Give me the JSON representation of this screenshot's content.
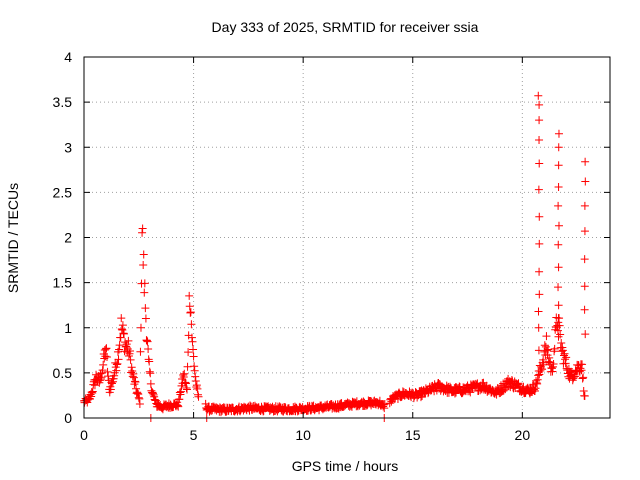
{
  "chart_data": {
    "type": "scatter",
    "title": "Day 333 of 2025, SRMTID for receiver ssia",
    "xlabel": "GPS time / hours",
    "ylabel": "SRMTID / TECUs",
    "xlim": [
      0,
      24
    ],
    "ylim": [
      0,
      4
    ],
    "xticks": [
      {
        "value": 0,
        "label": "0"
      },
      {
        "value": 5,
        "label": "5"
      },
      {
        "value": 10,
        "label": "10"
      },
      {
        "value": 15,
        "label": "15"
      },
      {
        "value": 20,
        "label": "20"
      }
    ],
    "yticks": [
      {
        "value": 0,
        "label": "0"
      },
      {
        "value": 0.5,
        "label": "0.5"
      },
      {
        "value": 1,
        "label": "1"
      },
      {
        "value": 1.5,
        "label": "1.5"
      },
      {
        "value": 2,
        "label": "2"
      },
      {
        "value": 2.5,
        "label": "2.5"
      },
      {
        "value": 3,
        "label": "3"
      },
      {
        "value": 3.5,
        "label": "3.5"
      },
      {
        "value": 4,
        "label": "4"
      }
    ],
    "grid": true,
    "marker": "plus",
    "series": [
      {
        "name": "SRMTID",
        "color": "#ff0000",
        "profile": [
          [
            0.0,
            0.18
          ],
          [
            0.25,
            0.2
          ],
          [
            0.4,
            0.32
          ],
          [
            0.55,
            0.45
          ],
          [
            0.7,
            0.4
          ],
          [
            0.85,
            0.55
          ],
          [
            1.0,
            0.78
          ],
          [
            1.15,
            0.3
          ],
          [
            1.35,
            0.45
          ],
          [
            1.55,
            0.7
          ],
          [
            1.7,
            1.02
          ],
          [
            1.9,
            0.8
          ],
          [
            2.05,
            0.75
          ],
          [
            2.2,
            0.5
          ],
          [
            2.4,
            0.3
          ],
          [
            2.55,
            0.18
          ],
          [
            2.65,
            2.08
          ],
          [
            2.75,
            1.5
          ],
          [
            2.85,
            1.0
          ],
          [
            2.95,
            0.6
          ],
          [
            3.1,
            0.3
          ],
          [
            3.3,
            0.15
          ],
          [
            3.6,
            0.12
          ],
          [
            3.9,
            0.14
          ],
          [
            4.3,
            0.15
          ],
          [
            4.55,
            0.48
          ],
          [
            4.7,
            0.3
          ],
          [
            4.82,
            1.45
          ],
          [
            4.95,
            0.8
          ],
          [
            5.1,
            0.4
          ],
          [
            5.2,
            0.25
          ],
          [
            5.65,
            0.1
          ],
          [
            6.5,
            0.09
          ],
          [
            7.5,
            0.11
          ],
          [
            8.5,
            0.1
          ],
          [
            9.5,
            0.1
          ],
          [
            10.5,
            0.11
          ],
          [
            11.5,
            0.13
          ],
          [
            12.5,
            0.16
          ],
          [
            13.5,
            0.17
          ],
          [
            13.65,
            0.12
          ],
          [
            14.1,
            0.22
          ],
          [
            14.6,
            0.27
          ],
          [
            15.2,
            0.25
          ],
          [
            15.7,
            0.3
          ],
          [
            16.2,
            0.35
          ],
          [
            16.8,
            0.3
          ],
          [
            17.5,
            0.32
          ],
          [
            18.2,
            0.36
          ],
          [
            18.8,
            0.28
          ],
          [
            19.4,
            0.4
          ],
          [
            19.8,
            0.35
          ],
          [
            20.3,
            0.3
          ],
          [
            20.6,
            0.35
          ],
          [
            20.9,
            0.6
          ],
          [
            21.1,
            0.8
          ],
          [
            21.35,
            0.5
          ],
          [
            21.6,
            1.12
          ],
          [
            21.8,
            0.75
          ],
          [
            22.2,
            0.45
          ],
          [
            22.5,
            0.55
          ],
          [
            22.7,
            0.6
          ],
          [
            22.85,
            0.22
          ]
        ],
        "gaps": [
          [
            5.25,
            5.55
          ],
          [
            13.75,
            13.95
          ],
          [
            22.9,
            24
          ]
        ],
        "spikes": [
          {
            "x": 20.75,
            "points": [
              0.75,
              1.0,
              1.18,
              1.37,
              1.62,
              1.93,
              2.23,
              2.53,
              2.82,
              3.08,
              3.3,
              3.47,
              3.57
            ]
          },
          {
            "x": 21.65,
            "points": [
              0.9,
              1.06,
              1.25,
              1.45,
              1.67,
              1.92,
              2.13,
              2.35,
              2.56,
              2.8,
              3.0,
              3.15
            ]
          },
          {
            "x": 22.85,
            "points": [
              0.93,
              1.2,
              1.46,
              1.76,
              2.07,
              2.35,
              2.62,
              2.84
            ]
          }
        ],
        "isolated": [
          {
            "x": 3.05,
            "y": 0.0
          },
          {
            "x": 5.6,
            "y": 0.0
          },
          {
            "x": 13.7,
            "y": 0.0
          }
        ]
      }
    ]
  }
}
